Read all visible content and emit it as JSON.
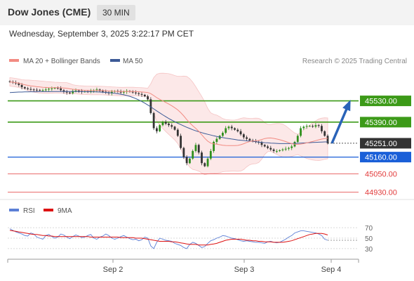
{
  "header": {
    "title": "Dow Jones (CME)",
    "timeframe": "30 MIN"
  },
  "timestamp": "Wednesday, September 3, 2025 3:22:17 PM CET",
  "legend": {
    "ma20_label": "MA 20 + Bollinger Bands",
    "ma20_color": "#f28b82",
    "ma50_label": "MA 50",
    "ma50_color": "#3c5a96",
    "credit": "Research © 2025 Trading Central"
  },
  "rsi_legend": {
    "rsi_label": "RSI",
    "rsi_color": "#5b7fd6",
    "ma9_label": "9MA",
    "ma9_color": "#dd1111"
  },
  "chart_data": [
    {
      "type": "line",
      "title": "",
      "series_kind": "candlestick price with MA 20, Bollinger Bands, MA 50",
      "ylim": [
        44890,
        45750
      ],
      "x_ticks": [
        "Sep 2",
        "Sep 3",
        "Sep 4"
      ],
      "levels": [
        {
          "label": "45530.00",
          "value": 45530,
          "kind": "resistance",
          "color": "#3c9a18"
        },
        {
          "label": "45390.00",
          "value": 45390,
          "kind": "resistance",
          "color": "#3c9a18"
        },
        {
          "label": "45251.00",
          "value": 45251,
          "kind": "last",
          "color": "#333333"
        },
        {
          "label": "45160.00",
          "value": 45160,
          "kind": "pivot",
          "color": "#1a5fd8"
        },
        {
          "label": "45050.00",
          "value": 45050,
          "kind": "support",
          "color": "#e23b3b"
        },
        {
          "label": "44930.00",
          "value": 44930,
          "kind": "support",
          "color": "#e23b3b"
        }
      ],
      "close": [
        45655,
        45650,
        45645,
        45635,
        45620,
        45612,
        45608,
        45605,
        45603,
        45602,
        45600,
        45600,
        45605,
        45610,
        45612,
        45615,
        45612,
        45600,
        45590,
        45585,
        45580,
        45595,
        45598,
        45595,
        45590,
        45592,
        45590,
        45595,
        45600,
        45605,
        45595,
        45590,
        45585,
        45580,
        45590,
        45595,
        45590,
        45585,
        45590,
        45595,
        45590,
        45585,
        45580,
        45575,
        45570,
        45560,
        45540,
        45450,
        45350,
        45330,
        45370,
        45390,
        45380,
        45370,
        45360,
        45340,
        45300,
        45220,
        45160,
        45120,
        45150,
        45200,
        45240,
        45190,
        45120,
        45100,
        45150,
        45200,
        45260,
        45280,
        45300,
        45320,
        45350,
        45360,
        45350,
        45340,
        45330,
        45310,
        45290,
        45280,
        45270,
        45265,
        45260,
        45255,
        45240,
        45230,
        45220,
        45210,
        45200,
        45200,
        45205,
        45210,
        45215,
        45220,
        45230,
        45260,
        45300,
        45350,
        45360,
        45365,
        45365,
        45360,
        45370,
        45365,
        45330,
        45300,
        45251
      ],
      "ma50": [
        45585,
        45586,
        45587,
        45588,
        45588,
        45589,
        45589,
        45590,
        45590,
        45590,
        45591,
        45591,
        45591,
        45591,
        45592,
        45592,
        45592,
        45592,
        45592,
        45592,
        45592,
        45592,
        45592,
        45592,
        45591,
        45591,
        45591,
        45590,
        45590,
        45589,
        45588,
        45587,
        45586,
        45584,
        45582,
        45580,
        45577,
        45574,
        45570,
        45565,
        45560,
        45553,
        45545,
        45536,
        45526,
        45515,
        45503,
        45490,
        45477,
        45464,
        45451,
        45438,
        45426,
        45414,
        45403,
        45393,
        45383,
        45374,
        45365,
        45356,
        45348,
        45340,
        45333,
        45327,
        45321,
        45315,
        45310,
        45305,
        45300,
        45296,
        45292,
        45288,
        45285,
        45282,
        45279,
        45276,
        45273,
        45271,
        45269,
        45267,
        45265,
        45263,
        45261,
        45259,
        45257,
        45255,
        45254,
        45252,
        45251,
        45250,
        45249,
        45249,
        45249,
        45249,
        45249,
        45250,
        45251,
        45252,
        45253,
        45254,
        45255,
        45256,
        45257,
        45258,
        45259,
        45260,
        45260
      ]
    },
    {
      "type": "line",
      "title": "",
      "ylim": [
        15,
        85
      ],
      "y_ticks": [
        70,
        50,
        30
      ],
      "series": [
        {
          "name": "RSI",
          "values": [
            68,
            65,
            62,
            60,
            58,
            55,
            54,
            60,
            58,
            52,
            50,
            48,
            55,
            57,
            53,
            50,
            52,
            58,
            56,
            52,
            49,
            53,
            56,
            54,
            51,
            52,
            55,
            57,
            50,
            48,
            52,
            54,
            58,
            55,
            50,
            48,
            50,
            53,
            55,
            52,
            49,
            47,
            48,
            45,
            47,
            52,
            50,
            35,
            30,
            42,
            50,
            48,
            46,
            45,
            44,
            40,
            38,
            36,
            32,
            30,
            38,
            42,
            40,
            36,
            32,
            34,
            40,
            45,
            47,
            50,
            52,
            55,
            54,
            52,
            50,
            49,
            47,
            45,
            44,
            45,
            44,
            43,
            42,
            42,
            41,
            40,
            43,
            44,
            42,
            41,
            42,
            45,
            48,
            52,
            55,
            60,
            62,
            64,
            64,
            63,
            62,
            61,
            60,
            58,
            55,
            48,
            46
          ]
        },
        {
          "name": "9MA",
          "values": [
            65,
            64,
            63,
            62,
            61,
            60,
            59,
            58,
            57,
            57,
            56,
            55,
            55,
            54,
            54,
            53,
            53,
            53,
            53,
            53,
            53,
            53,
            53,
            53,
            53,
            53,
            53,
            52,
            52,
            52,
            52,
            52,
            52,
            52,
            52,
            52,
            52,
            51,
            51,
            51,
            51,
            51,
            50,
            50,
            50,
            49,
            48,
            47,
            46,
            45,
            44,
            44,
            44,
            44,
            43,
            43,
            42,
            41,
            40,
            39,
            38,
            38,
            38,
            37,
            37,
            37,
            37,
            38,
            39,
            40,
            42,
            44,
            46,
            47,
            48,
            48,
            48,
            48,
            47,
            46,
            46,
            45,
            45,
            44,
            44,
            43,
            43,
            43,
            42,
            42,
            42,
            42,
            43,
            44,
            45,
            47,
            49,
            51,
            53,
            55,
            57,
            58,
            59,
            59,
            59,
            58,
            56
          ]
        }
      ]
    }
  ]
}
